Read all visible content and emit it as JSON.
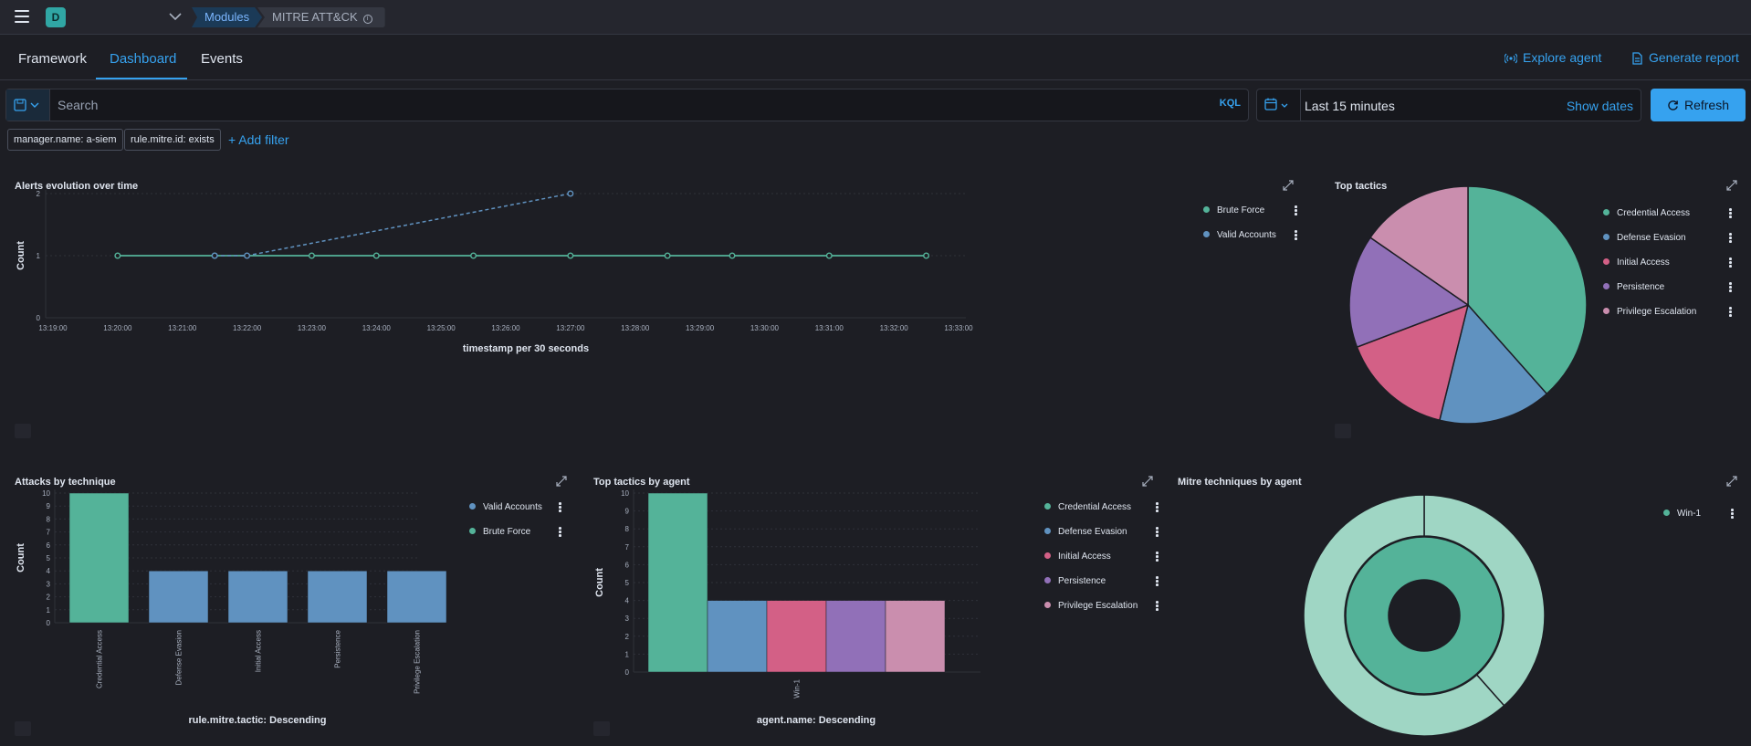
{
  "header": {
    "space_initial": "D",
    "breadcrumbs": [
      "Modules",
      "MITRE ATT&CK"
    ]
  },
  "tabs": [
    {
      "label": "Framework",
      "active": false
    },
    {
      "label": "Dashboard",
      "active": true
    },
    {
      "label": "Events",
      "active": false
    }
  ],
  "actions": {
    "explore_agent": "Explore agent",
    "generate_report": "Generate report"
  },
  "query": {
    "placeholder": "Search",
    "language": "KQL",
    "time_range": "Last 15 minutes",
    "show_dates": "Show dates",
    "refresh": "Refresh"
  },
  "filters": [
    "manager.name: a-siem",
    "rule.mitre.id: exists"
  ],
  "add_filter": "+ Add filter",
  "colors": {
    "accent": "#36a2ef",
    "credential_access": "#54b399",
    "defense_evasion": "#6092c0",
    "initial_access": "#d36086",
    "persistence": "#9170b8",
    "privilege_escalation": "#ca8eae",
    "win1_outer": "#9fd6c4"
  },
  "panels": {
    "alerts_evolution": {
      "title": "Alerts evolution over time",
      "ylabel": "Count",
      "xlabel": "timestamp per 30 seconds",
      "legend": [
        "Brute Force",
        "Valid Accounts"
      ]
    },
    "top_tactics": {
      "title": "Top tactics",
      "legend": [
        "Credential Access",
        "Defense Evasion",
        "Initial Access",
        "Persistence",
        "Privilege Escalation"
      ]
    },
    "attacks_by_technique": {
      "title": "Attacks by technique",
      "ylabel": "Count",
      "xlabel": "rule.mitre.tactic: Descending",
      "legend": [
        "Valid Accounts",
        "Brute Force"
      ]
    },
    "top_tactics_by_agent": {
      "title": "Top tactics by agent",
      "ylabel": "Count",
      "xlabel": "agent.name: Descending",
      "legend": [
        "Credential Access",
        "Defense Evasion",
        "Initial Access",
        "Persistence",
        "Privilege Escalation"
      ]
    },
    "mitre_techniques_by_agent": {
      "title": "Mitre techniques by agent",
      "legend": [
        "Win-1"
      ]
    }
  },
  "chart_data": [
    {
      "type": "line",
      "title": "Alerts evolution over time",
      "xlabel": "timestamp per 30 seconds",
      "ylabel": "Count",
      "ylim": [
        0,
        2
      ],
      "y_ticks": [
        0,
        1,
        2
      ],
      "x_ticks": [
        "13:19:00",
        "13:20:00",
        "13:21:00",
        "13:22:00",
        "13:23:00",
        "13:24:00",
        "13:25:00",
        "13:26:00",
        "13:27:00",
        "13:28:00",
        "13:29:00",
        "13:30:00",
        "13:31:00",
        "13:32:00",
        "13:33:00"
      ],
      "series": [
        {
          "name": "Brute Force",
          "color": "#54b399",
          "x": [
            "13:20:00",
            "13:21:30",
            "13:23:00",
            "13:24:00",
            "13:25:30",
            "13:27:00",
            "13:28:30",
            "13:29:30",
            "13:31:00",
            "13:32:30"
          ],
          "y": [
            1,
            1,
            1,
            1,
            1,
            1,
            1,
            1,
            1,
            1
          ]
        },
        {
          "name": "Valid Accounts",
          "color": "#6092c0",
          "x": [
            "13:21:30",
            "13:22:00",
            "13:27:00"
          ],
          "y": [
            1,
            1,
            2
          ]
        }
      ],
      "legend": "right"
    },
    {
      "type": "pie",
      "title": "Top tactics",
      "categories": [
        "Credential Access",
        "Defense Evasion",
        "Initial Access",
        "Persistence",
        "Privilege Escalation"
      ],
      "values": [
        10,
        4,
        4,
        4,
        4
      ],
      "legend": "right"
    },
    {
      "type": "bar",
      "title": "Attacks by technique",
      "xlabel": "rule.mitre.tactic: Descending",
      "ylabel": "Count",
      "ylim": [
        0,
        10
      ],
      "categories": [
        "Credential Access",
        "Defense Evasion",
        "Initial Access",
        "Persistence",
        "Privilege Escalation"
      ],
      "series": [
        {
          "name": "Brute Force",
          "values": [
            10,
            0,
            0,
            0,
            0
          ]
        },
        {
          "name": "Valid Accounts",
          "values": [
            0,
            4,
            4,
            4,
            4
          ]
        }
      ],
      "legend": "right"
    },
    {
      "type": "bar",
      "title": "Top tactics by agent",
      "xlabel": "agent.name: Descending",
      "ylabel": "Count",
      "ylim": [
        0,
        10
      ],
      "categories": [
        "Win-1"
      ],
      "series": [
        {
          "name": "Credential Access",
          "values": [
            10
          ]
        },
        {
          "name": "Defense Evasion",
          "values": [
            4
          ]
        },
        {
          "name": "Initial Access",
          "values": [
            4
          ]
        },
        {
          "name": "Persistence",
          "values": [
            4
          ]
        },
        {
          "name": "Privilege Escalation",
          "values": [
            4
          ]
        }
      ],
      "legend": "right"
    },
    {
      "type": "pie",
      "title": "Mitre techniques by agent",
      "categories": [
        "Win-1"
      ],
      "inner_ring": {
        "Win-1": 1
      },
      "outer_ring": {
        "Brute Force": 10,
        "Valid Accounts": 16
      },
      "legend": "right"
    }
  ]
}
